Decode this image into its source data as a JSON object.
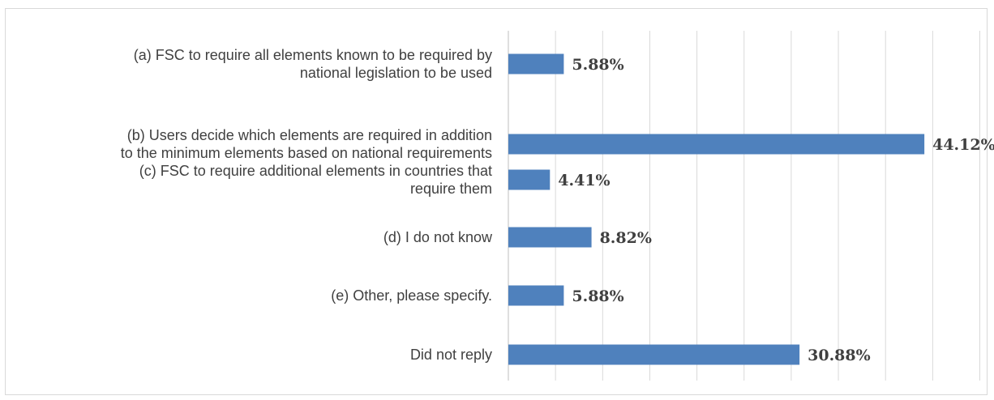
{
  "chart_data": {
    "type": "bar",
    "orientation": "horizontal",
    "categories": [
      [
        "(a)  FSC to require all elements known to be required by",
        "national legislation to be used"
      ],
      [
        "(b)  Users decide which elements are required in addition",
        "to the minimum elements based on national requirements"
      ],
      [
        "(c)  FSC to require additional elements in countries that",
        "require them"
      ],
      [
        "(d)  I do not know"
      ],
      [
        "(e)  Other, please specify."
      ],
      [
        "Did not reply"
      ]
    ],
    "values": [
      5.88,
      44.12,
      4.41,
      8.82,
      5.88,
      30.88
    ],
    "value_labels": [
      "5.88%",
      "44.12%",
      "4.41%",
      "8.82%",
      "5.88%",
      "30.88%"
    ],
    "xlim": [
      0,
      50
    ],
    "grid_step": 5,
    "grid": true,
    "bar_color": "#4f81bd",
    "grid_color": "#d9d9d9",
    "label_color": "#404040",
    "title": "",
    "xlabel": "",
    "ylabel": ""
  }
}
